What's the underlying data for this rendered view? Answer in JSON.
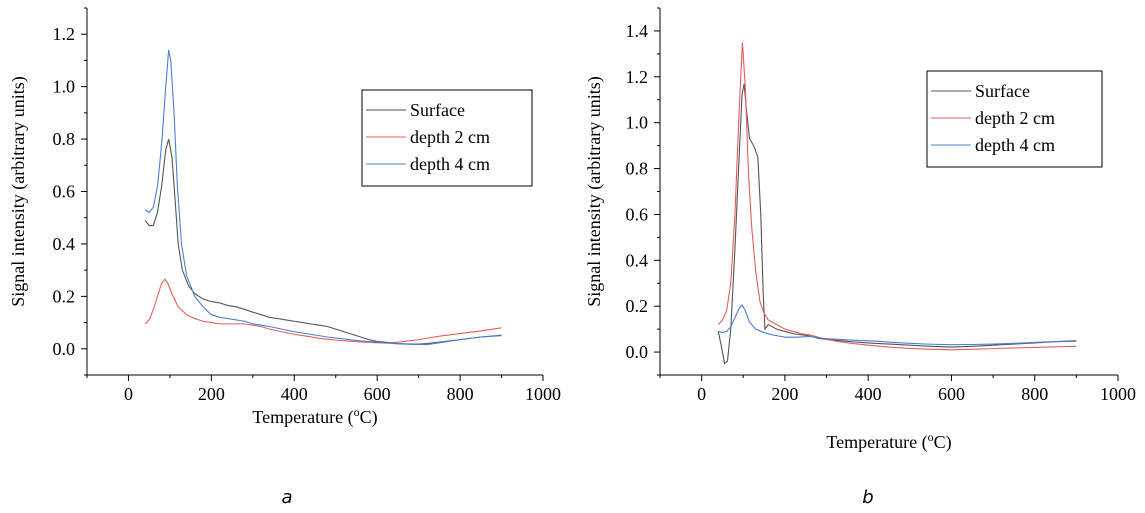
{
  "chart_data": [
    {
      "type": "line",
      "panel_label": "a",
      "xlabel_main": "Temperature (",
      "xlabel_sup": "o",
      "xlabel_end": "C)",
      "ylabel": "Signal intensity (arbitrary units)",
      "xlim": [
        -100,
        1000
      ],
      "ylim": [
        -0.1,
        1.3
      ],
      "xticks": [
        0,
        200,
        400,
        600,
        800,
        1000
      ],
      "yticks": [
        0.0,
        0.2,
        0.4,
        0.6,
        0.8,
        1.0,
        1.2
      ],
      "ytick_decimals": 1,
      "legend_position": "top-right",
      "series": [
        {
          "name": "Surface",
          "color": "#555555",
          "points": [
            [
              40,
              0.49
            ],
            [
              50,
              0.47
            ],
            [
              60,
              0.47
            ],
            [
              70,
              0.52
            ],
            [
              80,
              0.62
            ],
            [
              90,
              0.76
            ],
            [
              97,
              0.8
            ],
            [
              105,
              0.73
            ],
            [
              112,
              0.58
            ],
            [
              120,
              0.4
            ],
            [
              130,
              0.3
            ],
            [
              145,
              0.24
            ],
            [
              160,
              0.21
            ],
            [
              180,
              0.19
            ],
            [
              200,
              0.18
            ],
            [
              220,
              0.175
            ],
            [
              240,
              0.165
            ],
            [
              260,
              0.16
            ],
            [
              280,
              0.15
            ],
            [
              300,
              0.14
            ],
            [
              320,
              0.13
            ],
            [
              340,
              0.12
            ],
            [
              360,
              0.115
            ],
            [
              380,
              0.11
            ],
            [
              400,
              0.105
            ],
            [
              420,
              0.1
            ],
            [
              440,
              0.095
            ],
            [
              460,
              0.09
            ],
            [
              480,
              0.085
            ],
            [
              500,
              0.075
            ],
            [
              520,
              0.065
            ],
            [
              540,
              0.055
            ],
            [
              560,
              0.045
            ],
            [
              580,
              0.035
            ],
            [
              600,
              0.028
            ],
            [
              620,
              0.025
            ],
            [
              650,
              0.02
            ],
            [
              680,
              0.018
            ],
            [
              700,
              0.018
            ],
            [
              720,
              0.02
            ],
            [
              750,
              0.025
            ],
            [
              800,
              0.035
            ],
            [
              850,
              0.045
            ],
            [
              900,
              0.052
            ]
          ]
        },
        {
          "name": "depth 2 cm",
          "color": "#e0605a",
          "points": [
            [
              40,
              0.095
            ],
            [
              50,
              0.11
            ],
            [
              60,
              0.15
            ],
            [
              70,
              0.2
            ],
            [
              80,
              0.25
            ],
            [
              88,
              0.265
            ],
            [
              95,
              0.25
            ],
            [
              105,
              0.21
            ],
            [
              120,
              0.16
            ],
            [
              140,
              0.13
            ],
            [
              160,
              0.115
            ],
            [
              180,
              0.105
            ],
            [
              200,
              0.1
            ],
            [
              220,
              0.095
            ],
            [
              240,
              0.095
            ],
            [
              260,
              0.095
            ],
            [
              280,
              0.095
            ],
            [
              300,
              0.09
            ],
            [
              320,
              0.085
            ],
            [
              340,
              0.075
            ],
            [
              370,
              0.065
            ],
            [
              400,
              0.055
            ],
            [
              430,
              0.048
            ],
            [
              460,
              0.04
            ],
            [
              500,
              0.033
            ],
            [
              540,
              0.028
            ],
            [
              580,
              0.024
            ],
            [
              620,
              0.022
            ],
            [
              650,
              0.025
            ],
            [
              700,
              0.035
            ],
            [
              750,
              0.048
            ],
            [
              800,
              0.058
            ],
            [
              850,
              0.068
            ],
            [
              900,
              0.08
            ]
          ]
        },
        {
          "name": "depth 4 cm",
          "color": "#4a7fd6",
          "points": [
            [
              40,
              0.53
            ],
            [
              50,
              0.52
            ],
            [
              60,
              0.54
            ],
            [
              70,
              0.62
            ],
            [
              80,
              0.78
            ],
            [
              90,
              1.0
            ],
            [
              97,
              1.14
            ],
            [
              102,
              1.1
            ],
            [
              110,
              0.9
            ],
            [
              118,
              0.62
            ],
            [
              128,
              0.4
            ],
            [
              140,
              0.28
            ],
            [
              160,
              0.2
            ],
            [
              180,
              0.16
            ],
            [
              200,
              0.13
            ],
            [
              220,
              0.12
            ],
            [
              240,
              0.115
            ],
            [
              260,
              0.11
            ],
            [
              280,
              0.105
            ],
            [
              300,
              0.095
            ],
            [
              320,
              0.09
            ],
            [
              340,
              0.085
            ],
            [
              370,
              0.075
            ],
            [
              400,
              0.065
            ],
            [
              440,
              0.055
            ],
            [
              480,
              0.045
            ],
            [
              520,
              0.037
            ],
            [
              560,
              0.03
            ],
            [
              600,
              0.025
            ],
            [
              640,
              0.02
            ],
            [
              680,
              0.017
            ],
            [
              720,
              0.016
            ],
            [
              760,
              0.025
            ],
            [
              800,
              0.035
            ],
            [
              850,
              0.045
            ],
            [
              900,
              0.05
            ]
          ]
        }
      ]
    },
    {
      "type": "line",
      "panel_label": "b",
      "xlabel_main": "Temperature (",
      "xlabel_sup": "o",
      "xlabel_end": "C)",
      "ylabel": "Signal intensity (arbitrary units)",
      "xlim": [
        -100,
        1000
      ],
      "ylim": [
        -0.1,
        1.5
      ],
      "xticks": [
        0,
        200,
        400,
        600,
        800,
        1000
      ],
      "yticks": [
        0.0,
        0.2,
        0.4,
        0.6,
        0.8,
        1.0,
        1.2,
        1.4
      ],
      "ytick_decimals": 1,
      "legend_position": "top-right",
      "series": [
        {
          "name": "Surface",
          "color": "#555555",
          "points": [
            [
              40,
              0.09
            ],
            [
              48,
              0.02
            ],
            [
              55,
              -0.05
            ],
            [
              62,
              -0.04
            ],
            [
              70,
              0.1
            ],
            [
              80,
              0.45
            ],
            [
              90,
              0.85
            ],
            [
              97,
              1.12
            ],
            [
              102,
              1.17
            ],
            [
              108,
              1.05
            ],
            [
              115,
              0.93
            ],
            [
              125,
              0.9
            ],
            [
              135,
              0.85
            ],
            [
              142,
              0.6
            ],
            [
              148,
              0.25
            ],
            [
              152,
              0.1
            ],
            [
              160,
              0.12
            ],
            [
              170,
              0.11
            ],
            [
              180,
              0.1
            ],
            [
              200,
              0.09
            ],
            [
              220,
              0.08
            ],
            [
              240,
              0.075
            ],
            [
              260,
              0.07
            ],
            [
              280,
              0.06
            ],
            [
              300,
              0.055
            ],
            [
              330,
              0.05
            ],
            [
              360,
              0.045
            ],
            [
              400,
              0.04
            ],
            [
              450,
              0.035
            ],
            [
              500,
              0.03
            ],
            [
              550,
              0.025
            ],
            [
              600,
              0.022
            ],
            [
              650,
              0.025
            ],
            [
              700,
              0.03
            ],
            [
              750,
              0.035
            ],
            [
              800,
              0.04
            ],
            [
              850,
              0.045
            ],
            [
              900,
              0.048
            ]
          ]
        },
        {
          "name": "depth 2 cm",
          "color": "#e0605a",
          "points": [
            [
              40,
              0.12
            ],
            [
              50,
              0.14
            ],
            [
              60,
              0.18
            ],
            [
              70,
              0.3
            ],
            [
              80,
              0.6
            ],
            [
              90,
              1.05
            ],
            [
              98,
              1.35
            ],
            [
              105,
              1.15
            ],
            [
              112,
              0.8
            ],
            [
              120,
              0.55
            ],
            [
              130,
              0.35
            ],
            [
              140,
              0.22
            ],
            [
              150,
              0.17
            ],
            [
              160,
              0.14
            ],
            [
              180,
              0.12
            ],
            [
              200,
              0.1
            ],
            [
              220,
              0.09
            ],
            [
              240,
              0.08
            ],
            [
              260,
              0.075
            ],
            [
              280,
              0.065
            ],
            [
              300,
              0.055
            ],
            [
              330,
              0.045
            ],
            [
              360,
              0.038
            ],
            [
              400,
              0.03
            ],
            [
              450,
              0.022
            ],
            [
              500,
              0.016
            ],
            [
              550,
              0.012
            ],
            [
              600,
              0.01
            ],
            [
              650,
              0.012
            ],
            [
              700,
              0.015
            ],
            [
              750,
              0.018
            ],
            [
              800,
              0.02
            ],
            [
              850,
              0.023
            ],
            [
              900,
              0.025
            ]
          ]
        },
        {
          "name": "depth 4 cm",
          "color": "#4a7fd6",
          "points": [
            [
              40,
              0.09
            ],
            [
              50,
              0.085
            ],
            [
              60,
              0.09
            ],
            [
              70,
              0.11
            ],
            [
              80,
              0.15
            ],
            [
              90,
              0.19
            ],
            [
              97,
              0.205
            ],
            [
              105,
              0.18
            ],
            [
              115,
              0.13
            ],
            [
              130,
              0.1
            ],
            [
              150,
              0.085
            ],
            [
              170,
              0.075
            ],
            [
              200,
              0.065
            ],
            [
              230,
              0.065
            ],
            [
              260,
              0.068
            ],
            [
              290,
              0.06
            ],
            [
              330,
              0.055
            ],
            [
              380,
              0.05
            ],
            [
              420,
              0.048
            ],
            [
              460,
              0.042
            ],
            [
              500,
              0.038
            ],
            [
              550,
              0.034
            ],
            [
              600,
              0.032
            ],
            [
              650,
              0.033
            ],
            [
              700,
              0.035
            ],
            [
              750,
              0.038
            ],
            [
              800,
              0.042
            ],
            [
              850,
              0.046
            ],
            [
              900,
              0.05
            ]
          ]
        }
      ]
    }
  ]
}
